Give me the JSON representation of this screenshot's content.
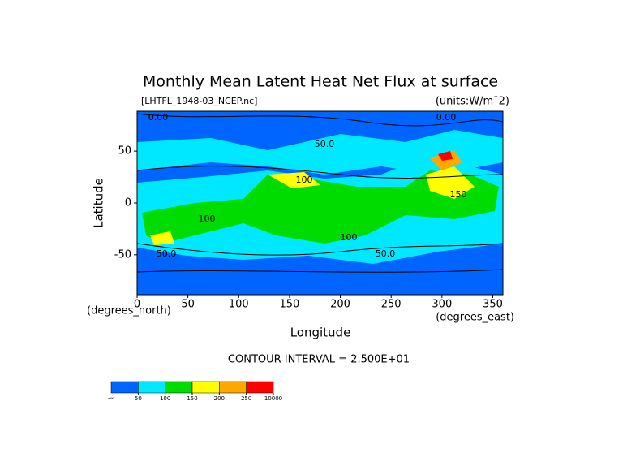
{
  "chart_data": {
    "type": "contour",
    "title": "Monthly Mean Latent Heat Net Flux at surface",
    "dataset_label": "[LHTFL_1948-03_NCEP.nc]",
    "units_label": "(units:W/m¯2)",
    "x_label": "Longitude",
    "y_label": "Latitude",
    "x_units_label": "(degrees_east)",
    "y_units_label": "(degrees_north)",
    "xlim": [
      0,
      360
    ],
    "ylim": [
      -88.5,
      88.5
    ],
    "xticks": [
      0,
      50,
      100,
      150,
      200,
      250,
      300,
      350
    ],
    "yticks": [
      -50,
      0,
      50
    ],
    "contour_interval_label": "CONTOUR INTERVAL = 2.500E+01",
    "contour_labels": [
      "0.00",
      "50.0",
      "100",
      "150",
      "100",
      "100",
      "50.0",
      "50.0",
      "0.00"
    ],
    "colorbar_colors": [
      "#0064ff",
      "#00e8ff",
      "#00dc00",
      "#ffff00",
      "#ffa800",
      "#ff0000"
    ],
    "colorbar_ticks": [
      "-∞",
      50,
      100,
      150,
      200,
      250,
      10000
    ]
  }
}
